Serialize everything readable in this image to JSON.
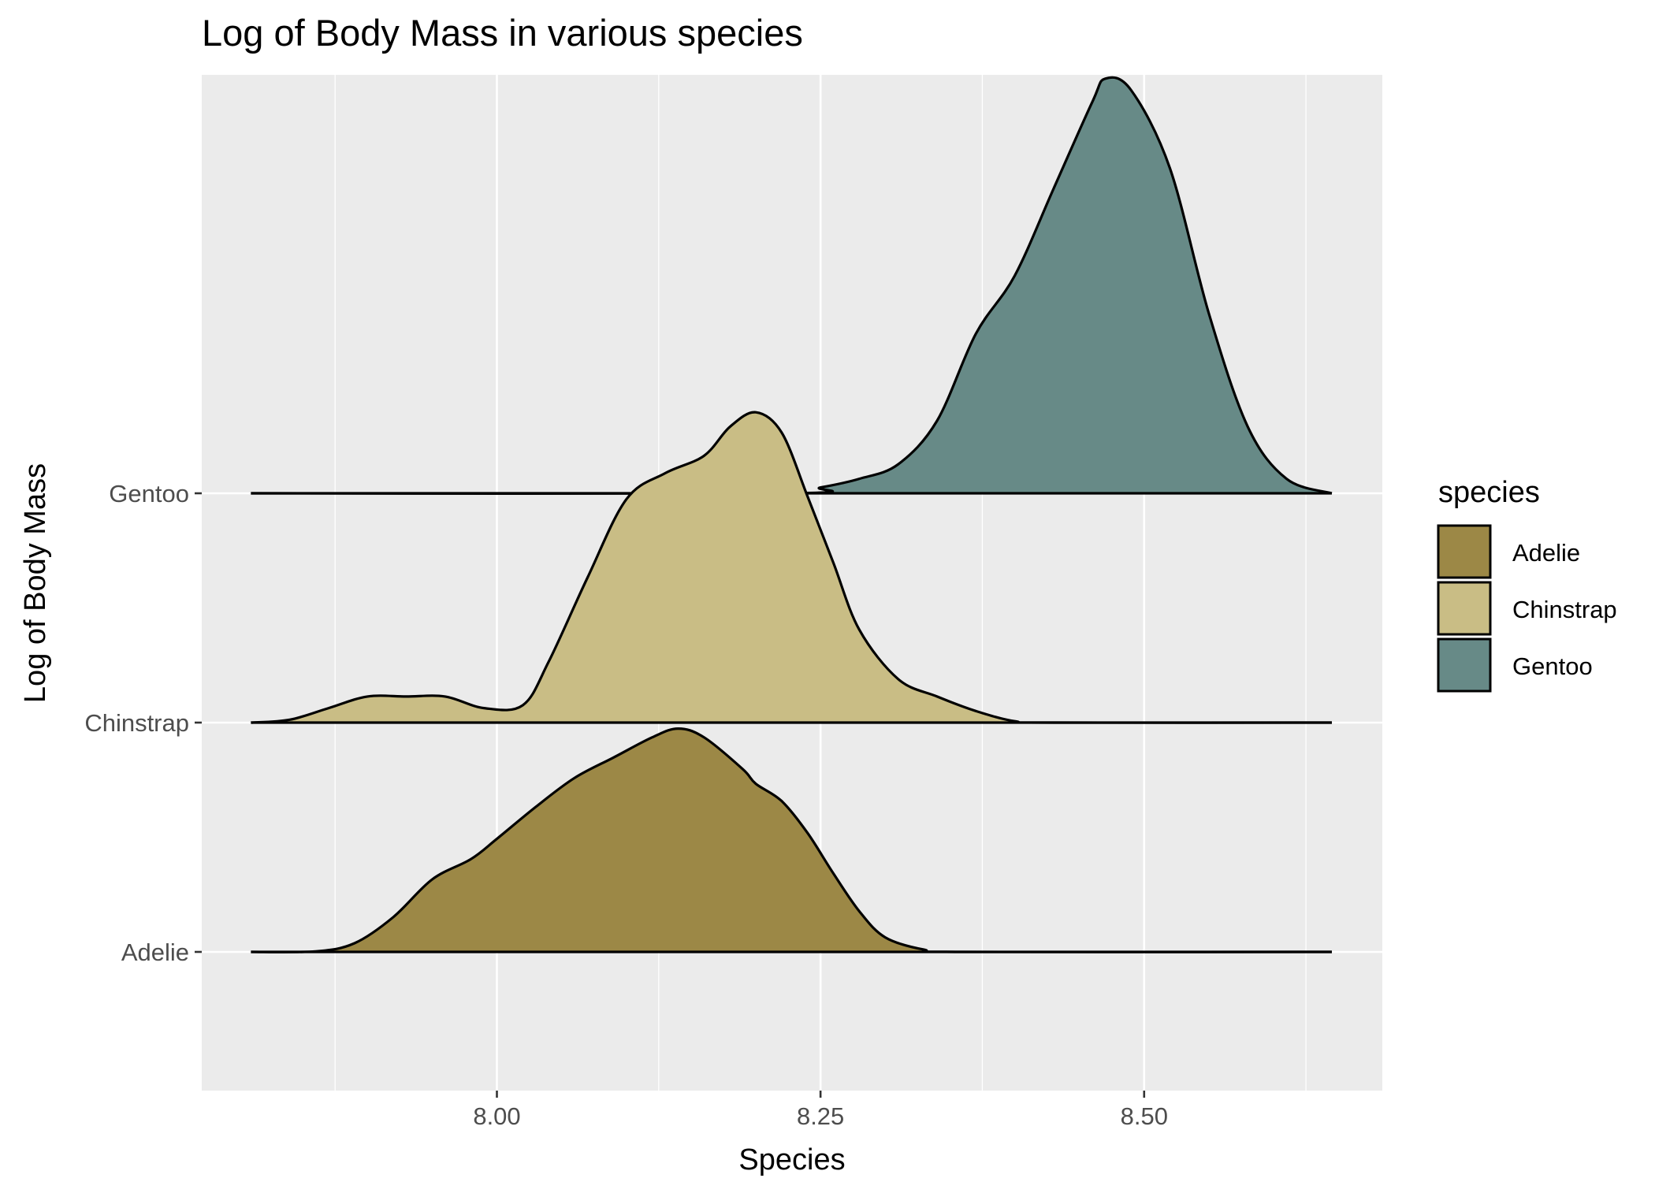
{
  "chart_data": {
    "type": "ridgeline",
    "title": "Log of Body Mass in various species",
    "xlabel": "Species",
    "ylabel": "Log of Body Mass",
    "x_range": [
      7.772,
      8.684
    ],
    "x_ticks": [
      "8.00",
      "8.25",
      "8.50"
    ],
    "x_tick_values": [
      8.0,
      8.25,
      8.5
    ],
    "x_minor_gridlines": [
      7.875,
      8.125,
      8.375,
      8.625
    ],
    "density_x_range": [
      7.81,
      8.645
    ],
    "categories": [
      "Adelie",
      "Chinstrap",
      "Gentoo"
    ],
    "grid": true,
    "legend": {
      "title": "species",
      "position": "right",
      "entries": [
        "Adelie",
        "Chinstrap",
        "Gentoo"
      ]
    },
    "colors": {
      "Adelie": "#9c8846",
      "Chinstrap": "#c9bd85",
      "Gentoo": "#678a87",
      "panel_background": "#ebebeb",
      "gridline": "#ffffff",
      "outline": "#000000"
    },
    "series": [
      {
        "name": "Adelie",
        "points": [
          [
            7.81,
            0
          ],
          [
            7.86,
            0.002
          ],
          [
            7.89,
            0.03
          ],
          [
            7.92,
            0.12
          ],
          [
            7.95,
            0.25
          ],
          [
            7.98,
            0.32
          ],
          [
            8.0,
            0.39
          ],
          [
            8.03,
            0.5
          ],
          [
            8.06,
            0.6
          ],
          [
            8.09,
            0.67
          ],
          [
            8.12,
            0.74
          ],
          [
            8.14,
            0.77
          ],
          [
            8.16,
            0.74
          ],
          [
            8.19,
            0.63
          ],
          [
            8.2,
            0.58
          ],
          [
            8.22,
            0.52
          ],
          [
            8.24,
            0.41
          ],
          [
            8.26,
            0.27
          ],
          [
            8.28,
            0.14
          ],
          [
            8.3,
            0.05
          ],
          [
            8.33,
            0.008
          ],
          [
            8.36,
            0
          ],
          [
            8.645,
            0
          ]
        ]
      },
      {
        "name": "Chinstrap",
        "points": [
          [
            7.81,
            0
          ],
          [
            7.84,
            0.01
          ],
          [
            7.87,
            0.05
          ],
          [
            7.9,
            0.09
          ],
          [
            7.93,
            0.09
          ],
          [
            7.96,
            0.09
          ],
          [
            7.99,
            0.05
          ],
          [
            8.02,
            0.06
          ],
          [
            8.04,
            0.21
          ],
          [
            8.07,
            0.5
          ],
          [
            8.1,
            0.77
          ],
          [
            8.13,
            0.86
          ],
          [
            8.16,
            0.92
          ],
          [
            8.18,
            1.02
          ],
          [
            8.2,
            1.07
          ],
          [
            8.22,
            1.0
          ],
          [
            8.24,
            0.78
          ],
          [
            8.26,
            0.55
          ],
          [
            8.28,
            0.32
          ],
          [
            8.31,
            0.15
          ],
          [
            8.34,
            0.09
          ],
          [
            8.37,
            0.04
          ],
          [
            8.4,
            0.005
          ],
          [
            8.43,
            0
          ],
          [
            8.645,
            0
          ]
        ]
      },
      {
        "name": "Gentoo",
        "points": [
          [
            7.81,
            0
          ],
          [
            8.22,
            0
          ],
          [
            8.25,
            0.02
          ],
          [
            8.28,
            0.05
          ],
          [
            8.31,
            0.1
          ],
          [
            8.34,
            0.25
          ],
          [
            8.37,
            0.55
          ],
          [
            8.4,
            0.75
          ],
          [
            8.43,
            1.05
          ],
          [
            8.46,
            1.35
          ],
          [
            8.47,
            1.43
          ],
          [
            8.49,
            1.39
          ],
          [
            8.52,
            1.12
          ],
          [
            8.55,
            0.62
          ],
          [
            8.58,
            0.23
          ],
          [
            8.61,
            0.05
          ],
          [
            8.645,
            0
          ]
        ]
      }
    ]
  }
}
